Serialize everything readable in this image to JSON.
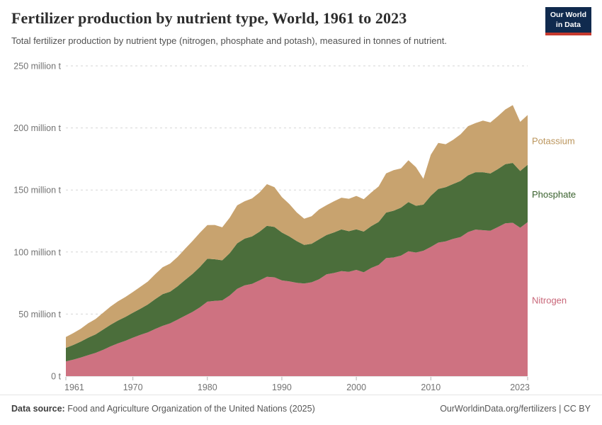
{
  "header": {
    "logo": {
      "line1": "Our World",
      "line2": "in Data",
      "bg_color": "#102a4e",
      "accent_color": "#c6392e"
    }
  },
  "chart_data": {
    "type": "area",
    "stacked": true,
    "title": "Fertilizer production by nutrient type, World, 1961 to 2023",
    "subtitle": "Total fertilizer production by nutrient type (nitrogen, phosphate and potash), measured in tonnes of nutrient.",
    "unit": "million tonnes of nutrient",
    "grid": "dashed-horizontal",
    "legend_position": "right-edge-labels",
    "xlim": [
      1961,
      2023
    ],
    "ylim": [
      0,
      250
    ],
    "xticks": [
      1961,
      1970,
      1980,
      1990,
      2000,
      2010,
      2023
    ],
    "yticks": [
      {
        "value": 0,
        "label": "0 t"
      },
      {
        "value": 50,
        "label": "50 million t"
      },
      {
        "value": 100,
        "label": "100 million t"
      },
      {
        "value": 150,
        "label": "150 million t"
      },
      {
        "value": 200,
        "label": "200 million t"
      },
      {
        "value": 250,
        "label": "250 million t"
      }
    ],
    "x": [
      1961,
      1962,
      1963,
      1964,
      1965,
      1966,
      1967,
      1968,
      1969,
      1970,
      1971,
      1972,
      1973,
      1974,
      1975,
      1976,
      1977,
      1978,
      1979,
      1980,
      1981,
      1982,
      1983,
      1984,
      1985,
      1986,
      1987,
      1988,
      1989,
      1990,
      1991,
      1992,
      1993,
      1994,
      1995,
      1996,
      1997,
      1998,
      1999,
      2000,
      2001,
      2002,
      2003,
      2004,
      2005,
      2006,
      2007,
      2008,
      2009,
      2010,
      2011,
      2012,
      2013,
      2014,
      2015,
      2016,
      2017,
      2018,
      2019,
      2020,
      2021,
      2022,
      2023
    ],
    "series": [
      {
        "name": "Nitrogen",
        "color": "#ce7281",
        "label_color": "#c9687a",
        "values": [
          11.9,
          13.3,
          15.0,
          16.9,
          18.8,
          21.2,
          24.0,
          26.4,
          28.5,
          31.0,
          33.2,
          35.2,
          38.0,
          40.5,
          42.5,
          45.5,
          48.7,
          51.7,
          55.4,
          60.0,
          60.6,
          61.0,
          65.0,
          70.4,
          73.1,
          74.4,
          77.1,
          80.0,
          79.6,
          77.1,
          76.3,
          75.2,
          74.6,
          75.6,
          78.1,
          82.1,
          83.1,
          84.6,
          84.1,
          85.6,
          83.7,
          87.2,
          89.6,
          95.1,
          95.6,
          97.1,
          100.6,
          99.6,
          101.0,
          104.1,
          107.6,
          108.6,
          110.6,
          112.1,
          116.1,
          118.1,
          117.6,
          117.1,
          120.1,
          123.1,
          123.6,
          119.6,
          124.1
        ]
      },
      {
        "name": "Phosphate",
        "color": "#4b6e3b",
        "label_color": "#38602c",
        "values": [
          10.9,
          11.8,
          12.8,
          14.1,
          14.9,
          16.3,
          17.4,
          18.4,
          19.2,
          20.1,
          21.1,
          22.5,
          24.1,
          25.6,
          25.6,
          26.9,
          28.8,
          30.6,
          32.6,
          34.6,
          33.6,
          32.3,
          34.1,
          36.6,
          37.7,
          38.2,
          39.3,
          41.1,
          40.6,
          38.6,
          36.3,
          33.6,
          31.1,
          31.1,
          32.1,
          31.6,
          32.7,
          33.6,
          32.7,
          32.7,
          32.8,
          33.7,
          34.7,
          36.7,
          37.7,
          38.7,
          39.7,
          37.7,
          37.2,
          41.2,
          43.2,
          43.7,
          44.2,
          45.2,
          45.7,
          46.2,
          46.7,
          46.2,
          46.7,
          47.7,
          48.2,
          45.7,
          46.2
        ]
      },
      {
        "name": "Potassium",
        "color": "#c8a36f",
        "label_color": "#bb955c",
        "values": [
          8.7,
          9.6,
          10.4,
          11.6,
          12.4,
          13.6,
          14.7,
          15.5,
          16.1,
          16.7,
          17.7,
          18.5,
          20.1,
          21.6,
          22.6,
          23.6,
          25.1,
          26.6,
          27.6,
          27.1,
          27.6,
          26.6,
          28.6,
          30.6,
          30.1,
          30.6,
          31.6,
          33.6,
          32.1,
          28.6,
          26.1,
          23.1,
          21.1,
          22.1,
          24.1,
          24.1,
          25.1,
          25.6,
          26.1,
          26.9,
          26.1,
          27.1,
          28.6,
          31.6,
          32.6,
          31.6,
          33.6,
          31.1,
          20.8,
          33.1,
          37.1,
          34.6,
          35.6,
          37.6,
          39.6,
          39.6,
          41.6,
          41.1,
          42.6,
          44.1,
          46.6,
          39.6,
          40.1
        ]
      }
    ]
  },
  "footer": {
    "source_label": "Data source:",
    "source": "Food and Agriculture Organization of the United Nations (2025)",
    "link": "OurWorldinData.org/fertilizers | CC BY"
  }
}
